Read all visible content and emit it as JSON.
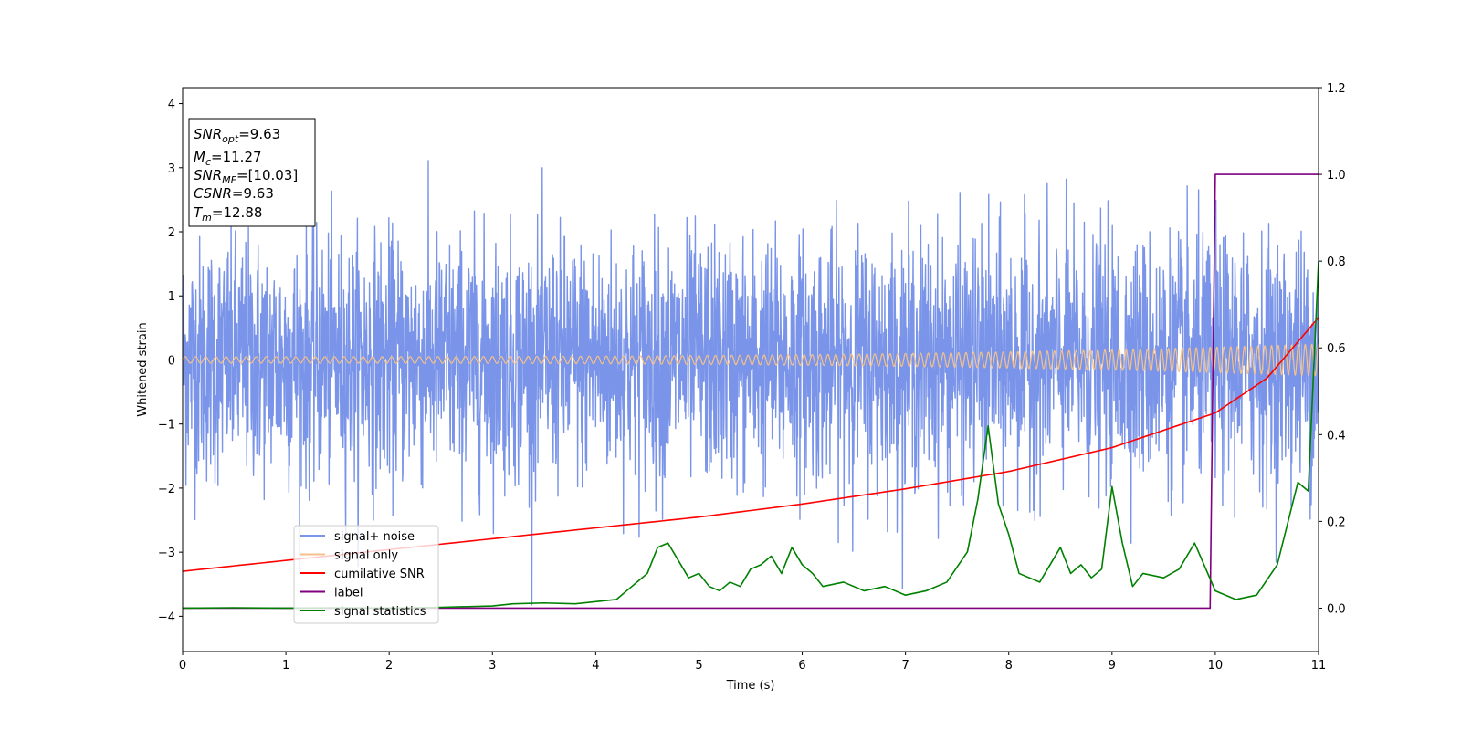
{
  "chart_data": {
    "type": "line",
    "xlabel": "Time (s)",
    "ylabel": "Whitened strain",
    "xlim": [
      0,
      11
    ],
    "ylim": [
      -4.55,
      4.25
    ],
    "y2lim": [
      -0.1,
      1.2
    ],
    "x_ticks": [
      0,
      1,
      2,
      3,
      4,
      5,
      6,
      7,
      8,
      9,
      10,
      11
    ],
    "y_ticks": [
      -4,
      -3,
      -2,
      -1,
      0,
      1,
      2,
      3,
      4
    ],
    "y_tick_labels": [
      "−4",
      "−3",
      "−2",
      "−1",
      "0",
      "1",
      "2",
      "3",
      "4"
    ],
    "y2_ticks": [
      0.0,
      0.2,
      0.4,
      0.6,
      0.8,
      1.0,
      1.2
    ],
    "y2_tick_labels": [
      "0.0",
      "0.2",
      "0.4",
      "0.6",
      "0.8",
      "1.0",
      "1.2"
    ],
    "grid": false,
    "legend_position": "lower-left",
    "annotation": {
      "lines": [
        {
          "sym": "SNR",
          "sub": "opt",
          "value": "=9.63"
        },
        {
          "sym": "M",
          "sub": "c",
          "value": "=11.27"
        },
        {
          "sym": "SNR",
          "sub": "MF",
          "value": "=[10.03]"
        },
        {
          "sym": "CSNR",
          "sub": "",
          "value": "=9.63"
        },
        {
          "sym": "T",
          "sub": "m",
          "value": "=12.88"
        }
      ]
    },
    "series": [
      {
        "name": "signal+ noise",
        "axis": "left",
        "color": "#7994e8",
        "kind": "noise",
        "std": 0.95,
        "peak": 3.85
      },
      {
        "name": "signal only",
        "axis": "left",
        "color": "#f5c18a",
        "kind": "chirp",
        "amp_start": 0.05,
        "amp_end": 0.25
      },
      {
        "name": "cumilative SNR",
        "axis": "right",
        "color": "#ff0000",
        "x": [
          0,
          1,
          2,
          3,
          4,
          5,
          6,
          7,
          8,
          9,
          10,
          10.5,
          11
        ],
        "y": [
          0.085,
          0.11,
          0.135,
          0.16,
          0.185,
          0.21,
          0.24,
          0.275,
          0.315,
          0.37,
          0.45,
          0.53,
          0.67
        ]
      },
      {
        "name": "label",
        "axis": "right",
        "color": "#800080",
        "x": [
          0,
          9.95,
          10.0,
          11
        ],
        "y": [
          0.0,
          0.0,
          1.0,
          1.0
        ]
      },
      {
        "name": "signal statistics",
        "axis": "right",
        "color": "#008000",
        "x": [
          0,
          0.5,
          1,
          1.5,
          2,
          2.5,
          3,
          3.2,
          3.5,
          3.8,
          4.0,
          4.2,
          4.35,
          4.5,
          4.6,
          4.7,
          4.8,
          4.9,
          5.0,
          5.1,
          5.2,
          5.3,
          5.4,
          5.5,
          5.6,
          5.7,
          5.8,
          5.9,
          6.0,
          6.1,
          6.2,
          6.4,
          6.6,
          6.8,
          7.0,
          7.2,
          7.4,
          7.6,
          7.7,
          7.8,
          7.9,
          8.0,
          8.1,
          8.3,
          8.5,
          8.6,
          8.7,
          8.8,
          8.9,
          9.0,
          9.1,
          9.2,
          9.3,
          9.5,
          9.65,
          9.8,
          10.0,
          10.2,
          10.4,
          10.6,
          10.8,
          10.9,
          11.0
        ],
        "y": [
          0.0,
          0.001,
          0.0,
          0.001,
          0.0,
          0.002,
          0.005,
          0.01,
          0.012,
          0.01,
          0.015,
          0.02,
          0.05,
          0.08,
          0.14,
          0.15,
          0.11,
          0.07,
          0.08,
          0.05,
          0.04,
          0.06,
          0.05,
          0.09,
          0.1,
          0.12,
          0.08,
          0.14,
          0.1,
          0.08,
          0.05,
          0.06,
          0.04,
          0.05,
          0.03,
          0.04,
          0.06,
          0.13,
          0.25,
          0.42,
          0.24,
          0.17,
          0.08,
          0.06,
          0.14,
          0.08,
          0.1,
          0.07,
          0.09,
          0.28,
          0.15,
          0.05,
          0.08,
          0.07,
          0.09,
          0.15,
          0.04,
          0.02,
          0.03,
          0.1,
          0.29,
          0.27,
          0.8
        ]
      }
    ]
  }
}
